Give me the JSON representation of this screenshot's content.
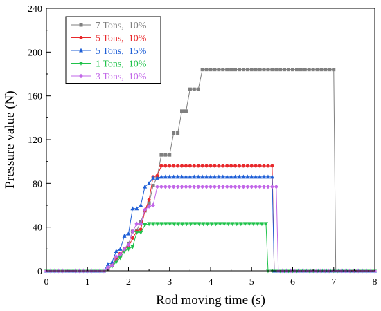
{
  "chart_data": {
    "type": "line",
    "title": "",
    "xlabel": "Rod moving time (s)",
    "ylabel": "Pressure value (N)",
    "xlim": [
      0,
      8
    ],
    "ylim": [
      0,
      240
    ],
    "xticks": [
      "0",
      "1",
      "2",
      "3",
      "4",
      "5",
      "6",
      "7",
      "8"
    ],
    "yticks": [
      "0",
      "40",
      "80",
      "120",
      "160",
      "200",
      "240"
    ],
    "grid": false,
    "legend_position": "top-left",
    "series": [
      {
        "name": "7 Tons,  10%",
        "color": "#7f7f7f",
        "marker": "square",
        "x": [
          0,
          1.4,
          1.5,
          1.6,
          1.7,
          1.8,
          1.9,
          2.0,
          2.1,
          2.2,
          2.3,
          2.4,
          2.5,
          2.6,
          2.7,
          2.8,
          2.9,
          3.0,
          3.1,
          3.2,
          3.3,
          3.4,
          3.5,
          3.6,
          3.7,
          3.8,
          7.0,
          7.05,
          8.0
        ],
        "y": [
          0,
          0,
          2,
          5,
          10,
          14,
          20,
          25,
          36,
          37,
          45,
          55,
          62,
          78,
          86,
          106,
          106,
          106,
          126,
          126,
          146,
          146,
          166,
          166,
          166,
          184,
          184,
          0,
          0
        ]
      },
      {
        "name": "5 Tons,  10%",
        "color": "#e8282b",
        "marker": "circle",
        "x": [
          0,
          1.4,
          1.5,
          1.6,
          1.7,
          1.8,
          1.9,
          2.0,
          2.1,
          2.2,
          2.3,
          2.4,
          2.5,
          2.6,
          2.7,
          2.8,
          5.5,
          5.55,
          8.0
        ],
        "y": [
          0,
          0,
          2,
          5,
          12,
          16,
          20,
          22,
          30,
          36,
          38,
          55,
          65,
          86,
          87,
          96,
          96,
          0,
          0
        ]
      },
      {
        "name": "5 Tons,  15%",
        "color": "#1f5fd6",
        "marker": "triangle-up",
        "x": [
          0,
          1.4,
          1.5,
          1.6,
          1.7,
          1.8,
          1.9,
          2.0,
          2.1,
          2.2,
          2.3,
          2.4,
          2.5,
          2.6,
          2.7,
          2.8,
          5.5,
          5.55,
          8.0
        ],
        "y": [
          0,
          0,
          6,
          8,
          18,
          20,
          32,
          34,
          57,
          57,
          60,
          77,
          80,
          85,
          85,
          86,
          86,
          0,
          0
        ]
      },
      {
        "name": "1 Tons,  10%",
        "color": "#1fc24a",
        "marker": "triangle-down",
        "x": [
          0,
          1.4,
          1.5,
          1.6,
          1.7,
          1.8,
          1.9,
          2.0,
          2.1,
          2.2,
          2.3,
          2.4,
          2.5,
          5.35,
          5.4,
          8.0
        ],
        "y": [
          0,
          0,
          2,
          4,
          8,
          12,
          18,
          20,
          22,
          35,
          35,
          42,
          43,
          43,
          0,
          0
        ]
      },
      {
        "name": "3 Tons,  10%",
        "color": "#c267e8",
        "marker": "diamond",
        "x": [
          0,
          1.4,
          1.5,
          1.6,
          1.7,
          1.8,
          1.9,
          2.0,
          2.1,
          2.2,
          2.3,
          2.4,
          2.5,
          2.6,
          2.7,
          5.6,
          5.65,
          8.0
        ],
        "y": [
          0,
          0,
          3,
          5,
          13,
          15,
          20,
          24,
          36,
          43,
          43,
          56,
          59,
          60,
          77,
          77,
          0,
          0
        ]
      }
    ]
  }
}
